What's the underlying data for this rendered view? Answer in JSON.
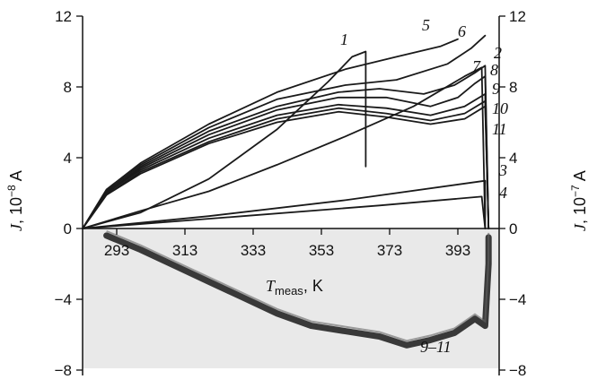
{
  "chart_data": {
    "type": "line",
    "title": "",
    "xlabel_main": "T",
    "xlabel_sub": "meas",
    "xlabel_unit": ", K",
    "ylabel_left_main": "J, 10",
    "ylabel_left_exp": "−8",
    "ylabel_left_unit": " A",
    "ylabel_right_main": "J, 10",
    "ylabel_right_exp": "−7",
    "ylabel_right_unit": " A",
    "xlim": [
      283,
      403
    ],
    "ylim": [
      -8,
      12
    ],
    "x_ticks": [
      293,
      313,
      333,
      353,
      373,
      393
    ],
    "y_ticks_left": [
      "12",
      "8",
      "4",
      "0",
      "−4",
      "−8"
    ],
    "y_ticks_right": [
      "12",
      "8",
      "4",
      "0",
      "−4",
      "−8"
    ],
    "y_tick_values": [
      12,
      8,
      4,
      0,
      -4,
      -8
    ],
    "grid": false,
    "series": [
      {
        "name": "1",
        "points": [
          [
            283,
            0
          ],
          [
            300,
            0.9
          ],
          [
            320,
            2.8
          ],
          [
            340,
            5.6
          ],
          [
            355,
            8.3
          ],
          [
            362,
            9.7
          ],
          [
            366,
            10.0
          ],
          [
            366,
            3.5
          ]
        ]
      },
      {
        "name": "2",
        "points": [
          [
            283,
            0
          ],
          [
            300,
            1.0
          ],
          [
            320,
            2.1
          ],
          [
            340,
            3.6
          ],
          [
            360,
            5.2
          ],
          [
            380,
            6.9
          ],
          [
            395,
            8.6
          ],
          [
            400,
            9.1
          ],
          [
            401,
            0
          ]
        ]
      },
      {
        "name": "3",
        "points": [
          [
            283,
            0
          ],
          [
            320,
            0.7
          ],
          [
            360,
            1.6
          ],
          [
            401,
            2.7
          ],
          [
            401,
            0
          ]
        ]
      },
      {
        "name": "4",
        "points": [
          [
            283,
            0
          ],
          [
            330,
            0.7
          ],
          [
            370,
            1.3
          ],
          [
            400,
            1.8
          ],
          [
            401,
            0
          ]
        ]
      },
      {
        "name": "5",
        "points": [
          [
            283,
            0
          ],
          [
            290,
            2.2
          ],
          [
            300,
            3.7
          ],
          [
            320,
            5.9
          ],
          [
            340,
            7.7
          ],
          [
            360,
            9.0
          ],
          [
            375,
            9.7
          ],
          [
            388,
            10.3
          ],
          [
            393,
            10.7
          ]
        ]
      },
      {
        "name": "6",
        "points": [
          [
            283,
            0
          ],
          [
            290,
            2.1
          ],
          [
            300,
            3.6
          ],
          [
            320,
            5.7
          ],
          [
            340,
            7.3
          ],
          [
            360,
            8.1
          ],
          [
            375,
            8.4
          ],
          [
            390,
            9.3
          ],
          [
            397,
            10.2
          ],
          [
            401,
            10.9
          ]
        ]
      },
      {
        "name": "7",
        "points": [
          [
            283,
            0
          ],
          [
            290,
            2.0
          ],
          [
            300,
            3.5
          ],
          [
            320,
            5.5
          ],
          [
            340,
            6.9
          ],
          [
            358,
            7.7
          ],
          [
            370,
            7.9
          ],
          [
            383,
            7.6
          ],
          [
            392,
            8.1
          ],
          [
            398,
            8.8
          ],
          [
            401,
            9.2
          ],
          [
            402,
            0
          ]
        ]
      },
      {
        "name": "8",
        "points": [
          [
            283,
            0
          ],
          [
            290,
            2.0
          ],
          [
            300,
            3.4
          ],
          [
            320,
            5.3
          ],
          [
            340,
            6.7
          ],
          [
            358,
            7.4
          ],
          [
            372,
            7.4
          ],
          [
            385,
            6.9
          ],
          [
            393,
            7.4
          ],
          [
            398,
            8.2
          ],
          [
            401,
            8.6
          ],
          [
            402,
            0
          ]
        ]
      },
      {
        "name": "9",
        "points": [
          [
            283,
            0
          ],
          [
            290,
            2.0
          ],
          [
            300,
            3.3
          ],
          [
            320,
            5.1
          ],
          [
            340,
            6.4
          ],
          [
            358,
            7.0
          ],
          [
            372,
            6.8
          ],
          [
            385,
            6.4
          ],
          [
            395,
            6.9
          ],
          [
            401,
            7.6
          ],
          [
            402,
            0
          ]
        ]
      },
      {
        "name": "10",
        "points": [
          [
            283,
            0
          ],
          [
            290,
            1.9
          ],
          [
            300,
            3.2
          ],
          [
            320,
            4.9
          ],
          [
            340,
            6.2
          ],
          [
            358,
            6.8
          ],
          [
            372,
            6.5
          ],
          [
            385,
            6.1
          ],
          [
            395,
            6.5
          ],
          [
            401,
            7.2
          ],
          [
            402,
            0
          ]
        ]
      },
      {
        "name": "11",
        "points": [
          [
            283,
            0
          ],
          [
            290,
            1.9
          ],
          [
            300,
            3.1
          ],
          [
            320,
            4.8
          ],
          [
            340,
            6.0
          ],
          [
            358,
            6.6
          ],
          [
            372,
            6.3
          ],
          [
            385,
            5.9
          ],
          [
            395,
            6.2
          ],
          [
            401,
            6.9
          ],
          [
            402,
            0
          ]
        ]
      },
      {
        "name": "9–11",
        "points": [
          [
            290,
            -0.4
          ],
          [
            300,
            -1.2
          ],
          [
            310,
            -2.1
          ],
          [
            320,
            -3.0
          ],
          [
            330,
            -3.9
          ],
          [
            340,
            -4.8
          ],
          [
            350,
            -5.5
          ],
          [
            360,
            -5.8
          ],
          [
            370,
            -6.1
          ],
          [
            378,
            -6.6
          ],
          [
            385,
            -6.3
          ],
          [
            392,
            -5.9
          ],
          [
            398,
            -5.1
          ],
          [
            401,
            -5.5
          ],
          [
            402,
            -2.0
          ],
          [
            402,
            -0.5
          ]
        ]
      }
    ],
    "labels": [
      {
        "text": "1",
        "series": "1"
      },
      {
        "text": "2",
        "series": "2"
      },
      {
        "text": "3",
        "series": "3"
      },
      {
        "text": "4",
        "series": "4"
      },
      {
        "text": "5",
        "series": "5"
      },
      {
        "text": "6",
        "series": "6"
      },
      {
        "text": "7",
        "series": "7"
      },
      {
        "text": "8",
        "series": "8"
      },
      {
        "text": "9",
        "series": "9"
      },
      {
        "text": "10",
        "series": "10"
      },
      {
        "text": "11",
        "series": "11"
      },
      {
        "text": "9–11",
        "series": "9–11"
      }
    ]
  }
}
